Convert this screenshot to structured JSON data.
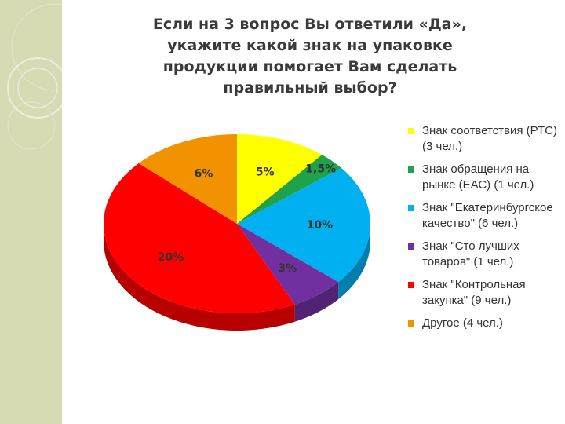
{
  "title": "Если на 3 вопрос Вы ответили «Да», укажите какой знак на упаковке продукции помогает Вам сделать правильный выбор?",
  "chart_data": {
    "type": "pie",
    "title": "",
    "series": [
      {
        "label": "5%",
        "value": 5,
        "legend": "Знак соответствия (РТС) (3 чел.)",
        "color": "#ffff00"
      },
      {
        "label": "1,5%",
        "value": 1.5,
        "legend": "Знак обращения на рынке (ЕАС) (1 чел.)",
        "color": "#1ea34a"
      },
      {
        "label": "10%",
        "value": 10,
        "legend": "Знак \"Екатеринбургское качество\" (6 чел.)",
        "color": "#00b0f0"
      },
      {
        "label": "3%",
        "value": 3,
        "legend": "Знак \"Сто лучших товаров\" (1 чел.)",
        "color": "#7030a0"
      },
      {
        "label": "20%",
        "value": 20,
        "legend": "Знак \"Контрольная закупка\" (9 чел.)",
        "color": "#ff0000"
      },
      {
        "label": "6%",
        "value": 6,
        "legend": "Другое (4 чел.)",
        "color": "#f39200"
      }
    ],
    "legend_position": "right"
  }
}
